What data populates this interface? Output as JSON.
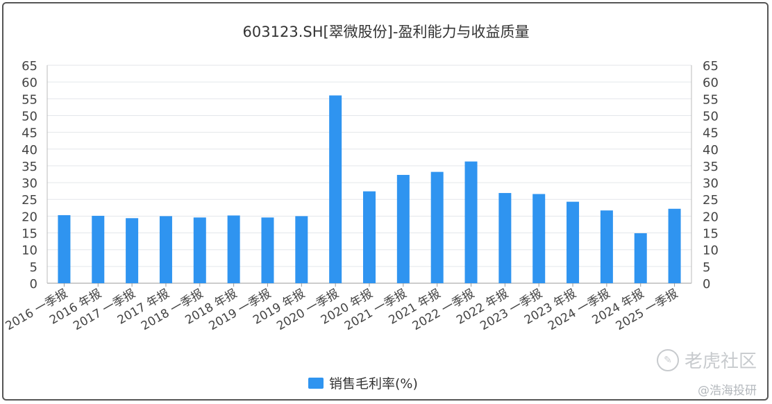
{
  "chart_data": {
    "type": "bar",
    "title": "603123.SH[翠微股份]-盈利能力与收益质量",
    "categories": [
      "2016 一季报",
      "2016 年报",
      "2017 一季报",
      "2017 年报",
      "2018 一季报",
      "2018 年报",
      "2019 一季报",
      "2019 年报",
      "2020 一季报",
      "2020 年报",
      "2021 一季报",
      "2021 年报",
      "2022 一季报",
      "2022 年报",
      "2023 一季报",
      "2023 年报",
      "2024 一季报",
      "2024 年报",
      "2025 一季报"
    ],
    "series": [
      {
        "name": "销售毛利率(%)",
        "color": "#2f94f0",
        "values": [
          20.3,
          20.1,
          19.4,
          20.0,
          19.6,
          20.2,
          19.6,
          20.0,
          56.0,
          27.4,
          32.3,
          33.2,
          36.3,
          26.9,
          26.6,
          24.3,
          21.7,
          14.9,
          22.2
        ]
      }
    ],
    "ylim": [
      0,
      65
    ],
    "yticks": [
      0,
      5,
      10,
      15,
      20,
      25,
      30,
      35,
      40,
      45,
      50,
      55,
      60,
      65
    ],
    "right_axis_mirror": true,
    "grid": true,
    "legend": "bottom-center"
  },
  "watermark": {
    "main": "老虎社区",
    "sub": "@浩海投研"
  }
}
